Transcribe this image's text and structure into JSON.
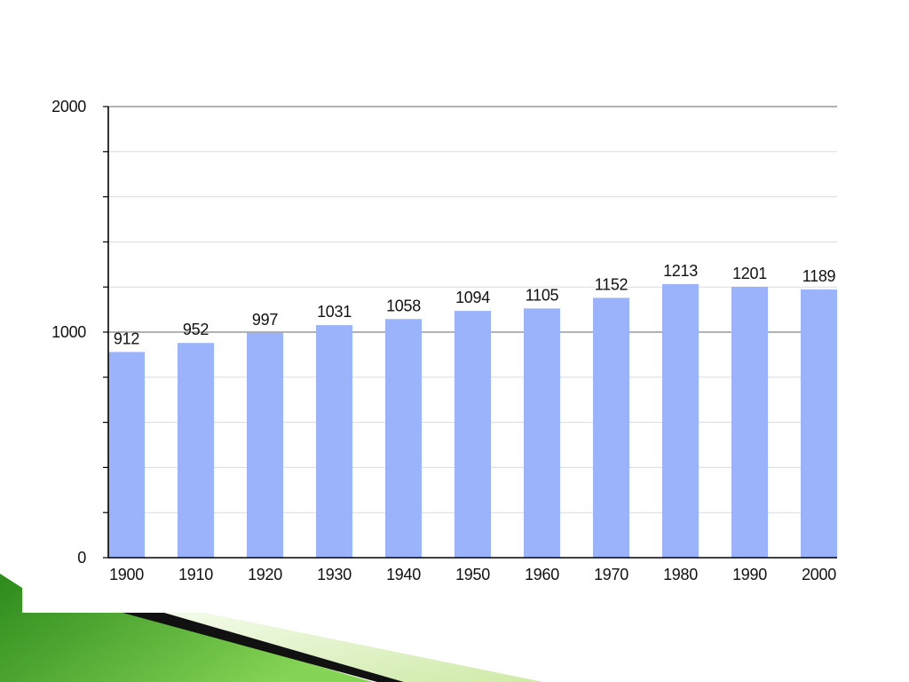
{
  "slide": {
    "colors": {
      "decor_green_dark": "#2c8a1c",
      "decor_green_light": "#86d455",
      "decor_black": "#111111",
      "decor_pale_green_light": "#f3fbe9",
      "decor_pale_green": "#cfeaa8"
    }
  },
  "chart_data": {
    "type": "bar",
    "categories": [
      "1900",
      "1910",
      "1920",
      "1930",
      "1940",
      "1950",
      "1960",
      "1970",
      "1980",
      "1990",
      "2000"
    ],
    "values": [
      912,
      952,
      997,
      1031,
      1058,
      1094,
      1105,
      1152,
      1213,
      1201,
      1189
    ],
    "ylim": [
      0,
      2000
    ],
    "yticks": [
      0,
      1000,
      2000
    ],
    "grid_step": 200,
    "grid": true,
    "data_labels": true,
    "colors": {
      "bar": "#9bb3fa",
      "axis": "#000000",
      "major_grid": "#999999",
      "minor_grid": "#dcdcdc",
      "text": "#111111"
    }
  }
}
